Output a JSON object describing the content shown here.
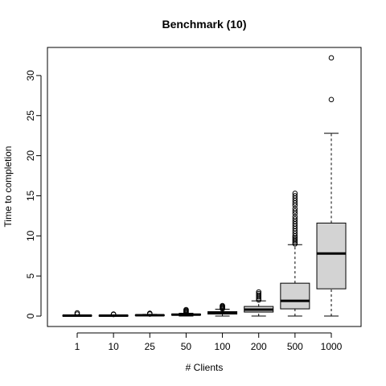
{
  "chart_data": {
    "type": "boxplot",
    "title": "Benchmark (10)",
    "xlabel": "# Clients",
    "ylabel": "Time to completion",
    "categories": [
      "1",
      "10",
      "25",
      "50",
      "100",
      "200",
      "500",
      "1000"
    ],
    "ylim": [
      -1.3,
      33.5
    ],
    "yticks": [
      0,
      5,
      10,
      15,
      20,
      25,
      30
    ],
    "grid": false,
    "colors": {
      "box_fill": "#d3d3d3",
      "stroke": "#000000",
      "background": "#ffffff"
    },
    "boxes": [
      {
        "category": "1",
        "whisker_low": 0.0,
        "q1": 0.03,
        "median": 0.06,
        "q3": 0.1,
        "whisker_high": 0.15,
        "outliers": [
          0.25,
          0.4
        ]
      },
      {
        "category": "10",
        "whisker_low": 0.0,
        "q1": 0.03,
        "median": 0.06,
        "q3": 0.1,
        "whisker_high": 0.15,
        "outliers": [
          0.2,
          0.25
        ]
      },
      {
        "category": "25",
        "whisker_low": 0.0,
        "q1": 0.06,
        "median": 0.1,
        "q3": 0.15,
        "whisker_high": 0.22,
        "outliers": [
          0.25,
          0.3,
          0.35
        ]
      },
      {
        "category": "50",
        "whisker_low": 0.0,
        "q1": 0.12,
        "median": 0.18,
        "q3": 0.25,
        "whisker_high": 0.35,
        "outliers": [
          0.4,
          0.5,
          0.6,
          0.7,
          0.8
        ]
      },
      {
        "category": "100",
        "whisker_low": 0.0,
        "q1": 0.25,
        "median": 0.38,
        "q3": 0.55,
        "whisker_high": 0.85,
        "outliers": [
          0.9,
          1.0,
          1.1,
          1.2,
          1.3
        ]
      },
      {
        "category": "200",
        "whisker_low": 0.0,
        "q1": 0.5,
        "median": 0.8,
        "q3": 1.2,
        "whisker_high": 1.9,
        "outliers": [
          2.0,
          2.2,
          2.4,
          2.6,
          2.8,
          3.0
        ]
      },
      {
        "category": "500",
        "whisker_low": 0.0,
        "q1": 0.9,
        "median": 1.9,
        "q3": 4.1,
        "whisker_high": 8.9,
        "outliers": [
          9.0,
          9.2,
          9.4,
          9.6,
          9.8,
          10.0,
          10.3,
          10.6,
          10.9,
          11.2,
          11.5,
          11.8,
          12.1,
          12.4,
          12.8,
          13.1,
          13.4,
          13.8,
          14.1,
          14.4,
          14.7,
          15.0,
          15.3
        ]
      },
      {
        "category": "1000",
        "whisker_low": 0.0,
        "q1": 3.4,
        "median": 7.8,
        "q3": 11.6,
        "whisker_high": 22.8,
        "outliers": [
          27.0,
          32.2
        ]
      }
    ]
  }
}
